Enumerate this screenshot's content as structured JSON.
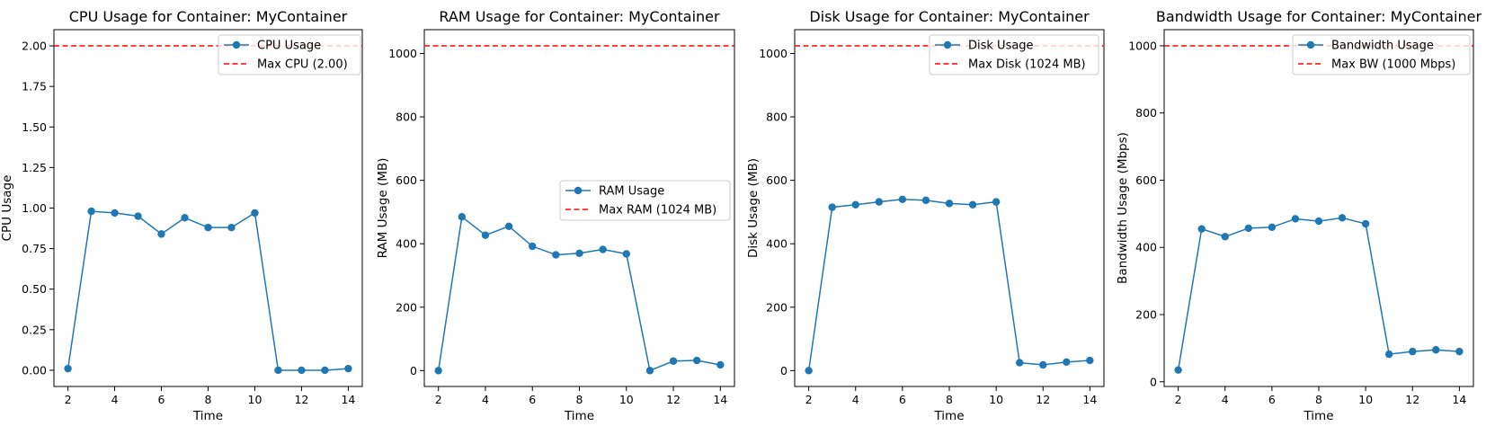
{
  "chart_data": [
    {
      "type": "line",
      "title": "CPU Usage for Container: MyContainer",
      "xlabel": "Time",
      "ylabel": "CPU Usage",
      "xlim": [
        1.4,
        14.6
      ],
      "ylim": [
        -0.1,
        2.1
      ],
      "xticks": [
        2,
        4,
        6,
        8,
        10,
        12,
        14
      ],
      "yticks": [
        0.0,
        0.25,
        0.5,
        0.75,
        1.0,
        1.25,
        1.5,
        1.75,
        2.0
      ],
      "ytick_labels": [
        "0.00",
        "0.25",
        "0.50",
        "0.75",
        "1.00",
        "1.25",
        "1.50",
        "1.75",
        "2.00"
      ],
      "x": [
        2,
        3,
        4,
        5,
        6,
        7,
        8,
        9,
        10,
        11,
        12,
        13,
        14
      ],
      "series": [
        {
          "name": "CPU Usage",
          "color": "#1f77b4",
          "values": [
            0.01,
            0.98,
            0.97,
            0.95,
            0.84,
            0.94,
            0.88,
            0.88,
            0.97,
            0.0,
            0.0,
            0.0,
            0.01
          ]
        }
      ],
      "threshold": {
        "name": "Max CPU (2.00)",
        "value": 2.0,
        "color": "#ff0000"
      },
      "legend": "top-right"
    },
    {
      "type": "line",
      "title": "RAM Usage for Container: MyContainer",
      "xlabel": "Time",
      "ylabel": "RAM Usage (MB)",
      "xlim": [
        1.4,
        14.6
      ],
      "ylim": [
        -50,
        1075
      ],
      "xticks": [
        2,
        4,
        6,
        8,
        10,
        12,
        14
      ],
      "yticks": [
        0,
        200,
        400,
        600,
        800,
        1000
      ],
      "ytick_labels": [
        "0",
        "200",
        "400",
        "600",
        "800",
        "1000"
      ],
      "x": [
        2,
        3,
        4,
        5,
        6,
        7,
        8,
        9,
        10,
        11,
        12,
        13,
        14
      ],
      "series": [
        {
          "name": "RAM Usage",
          "color": "#1f77b4",
          "values": [
            0,
            485,
            427,
            455,
            392,
            365,
            370,
            382,
            368,
            0,
            30,
            32,
            18
          ]
        }
      ],
      "threshold": {
        "name": "Max RAM (1024 MB)",
        "value": 1024,
        "color": "#ff0000"
      },
      "legend": "center-right"
    },
    {
      "type": "line",
      "title": "Disk Usage for Container: MyContainer",
      "xlabel": "Time",
      "ylabel": "Disk Usage (MB)",
      "xlim": [
        1.4,
        14.6
      ],
      "ylim": [
        -50,
        1075
      ],
      "xticks": [
        2,
        4,
        6,
        8,
        10,
        12,
        14
      ],
      "yticks": [
        0,
        200,
        400,
        600,
        800,
        1000
      ],
      "ytick_labels": [
        "0",
        "200",
        "400",
        "600",
        "800",
        "1000"
      ],
      "x": [
        2,
        3,
        4,
        5,
        6,
        7,
        8,
        9,
        10,
        11,
        12,
        13,
        14
      ],
      "series": [
        {
          "name": "Disk Usage",
          "color": "#1f77b4",
          "values": [
            0,
            515,
            523,
            532,
            540,
            537,
            527,
            523,
            532,
            25,
            18,
            27,
            32
          ]
        }
      ],
      "threshold": {
        "name": "Max Disk (1024 MB)",
        "value": 1024,
        "color": "#ff0000"
      },
      "legend": "top-right"
    },
    {
      "type": "line",
      "title": "Bandwidth Usage for Container: MyContainer",
      "xlabel": "Time",
      "ylabel": "Bandwidth Usage (Mbps)",
      "xlim": [
        1.4,
        14.6
      ],
      "ylim": [
        -14,
        1048
      ],
      "xticks": [
        2,
        4,
        6,
        8,
        10,
        12,
        14
      ],
      "yticks": [
        0,
        200,
        400,
        600,
        800,
        1000
      ],
      "ytick_labels": [
        "0",
        "200",
        "400",
        "600",
        "800",
        "1000"
      ],
      "x": [
        2,
        3,
        4,
        5,
        6,
        7,
        8,
        9,
        10,
        11,
        12,
        13,
        14
      ],
      "series": [
        {
          "name": "Bandwidth Usage",
          "color": "#1f77b4",
          "values": [
            35,
            455,
            432,
            457,
            460,
            485,
            478,
            488,
            470,
            82,
            90,
            95,
            90
          ]
        }
      ],
      "threshold": {
        "name": "Max BW (1000 Mbps)",
        "value": 1000,
        "color": "#ff0000"
      },
      "legend": "top-right"
    }
  ]
}
